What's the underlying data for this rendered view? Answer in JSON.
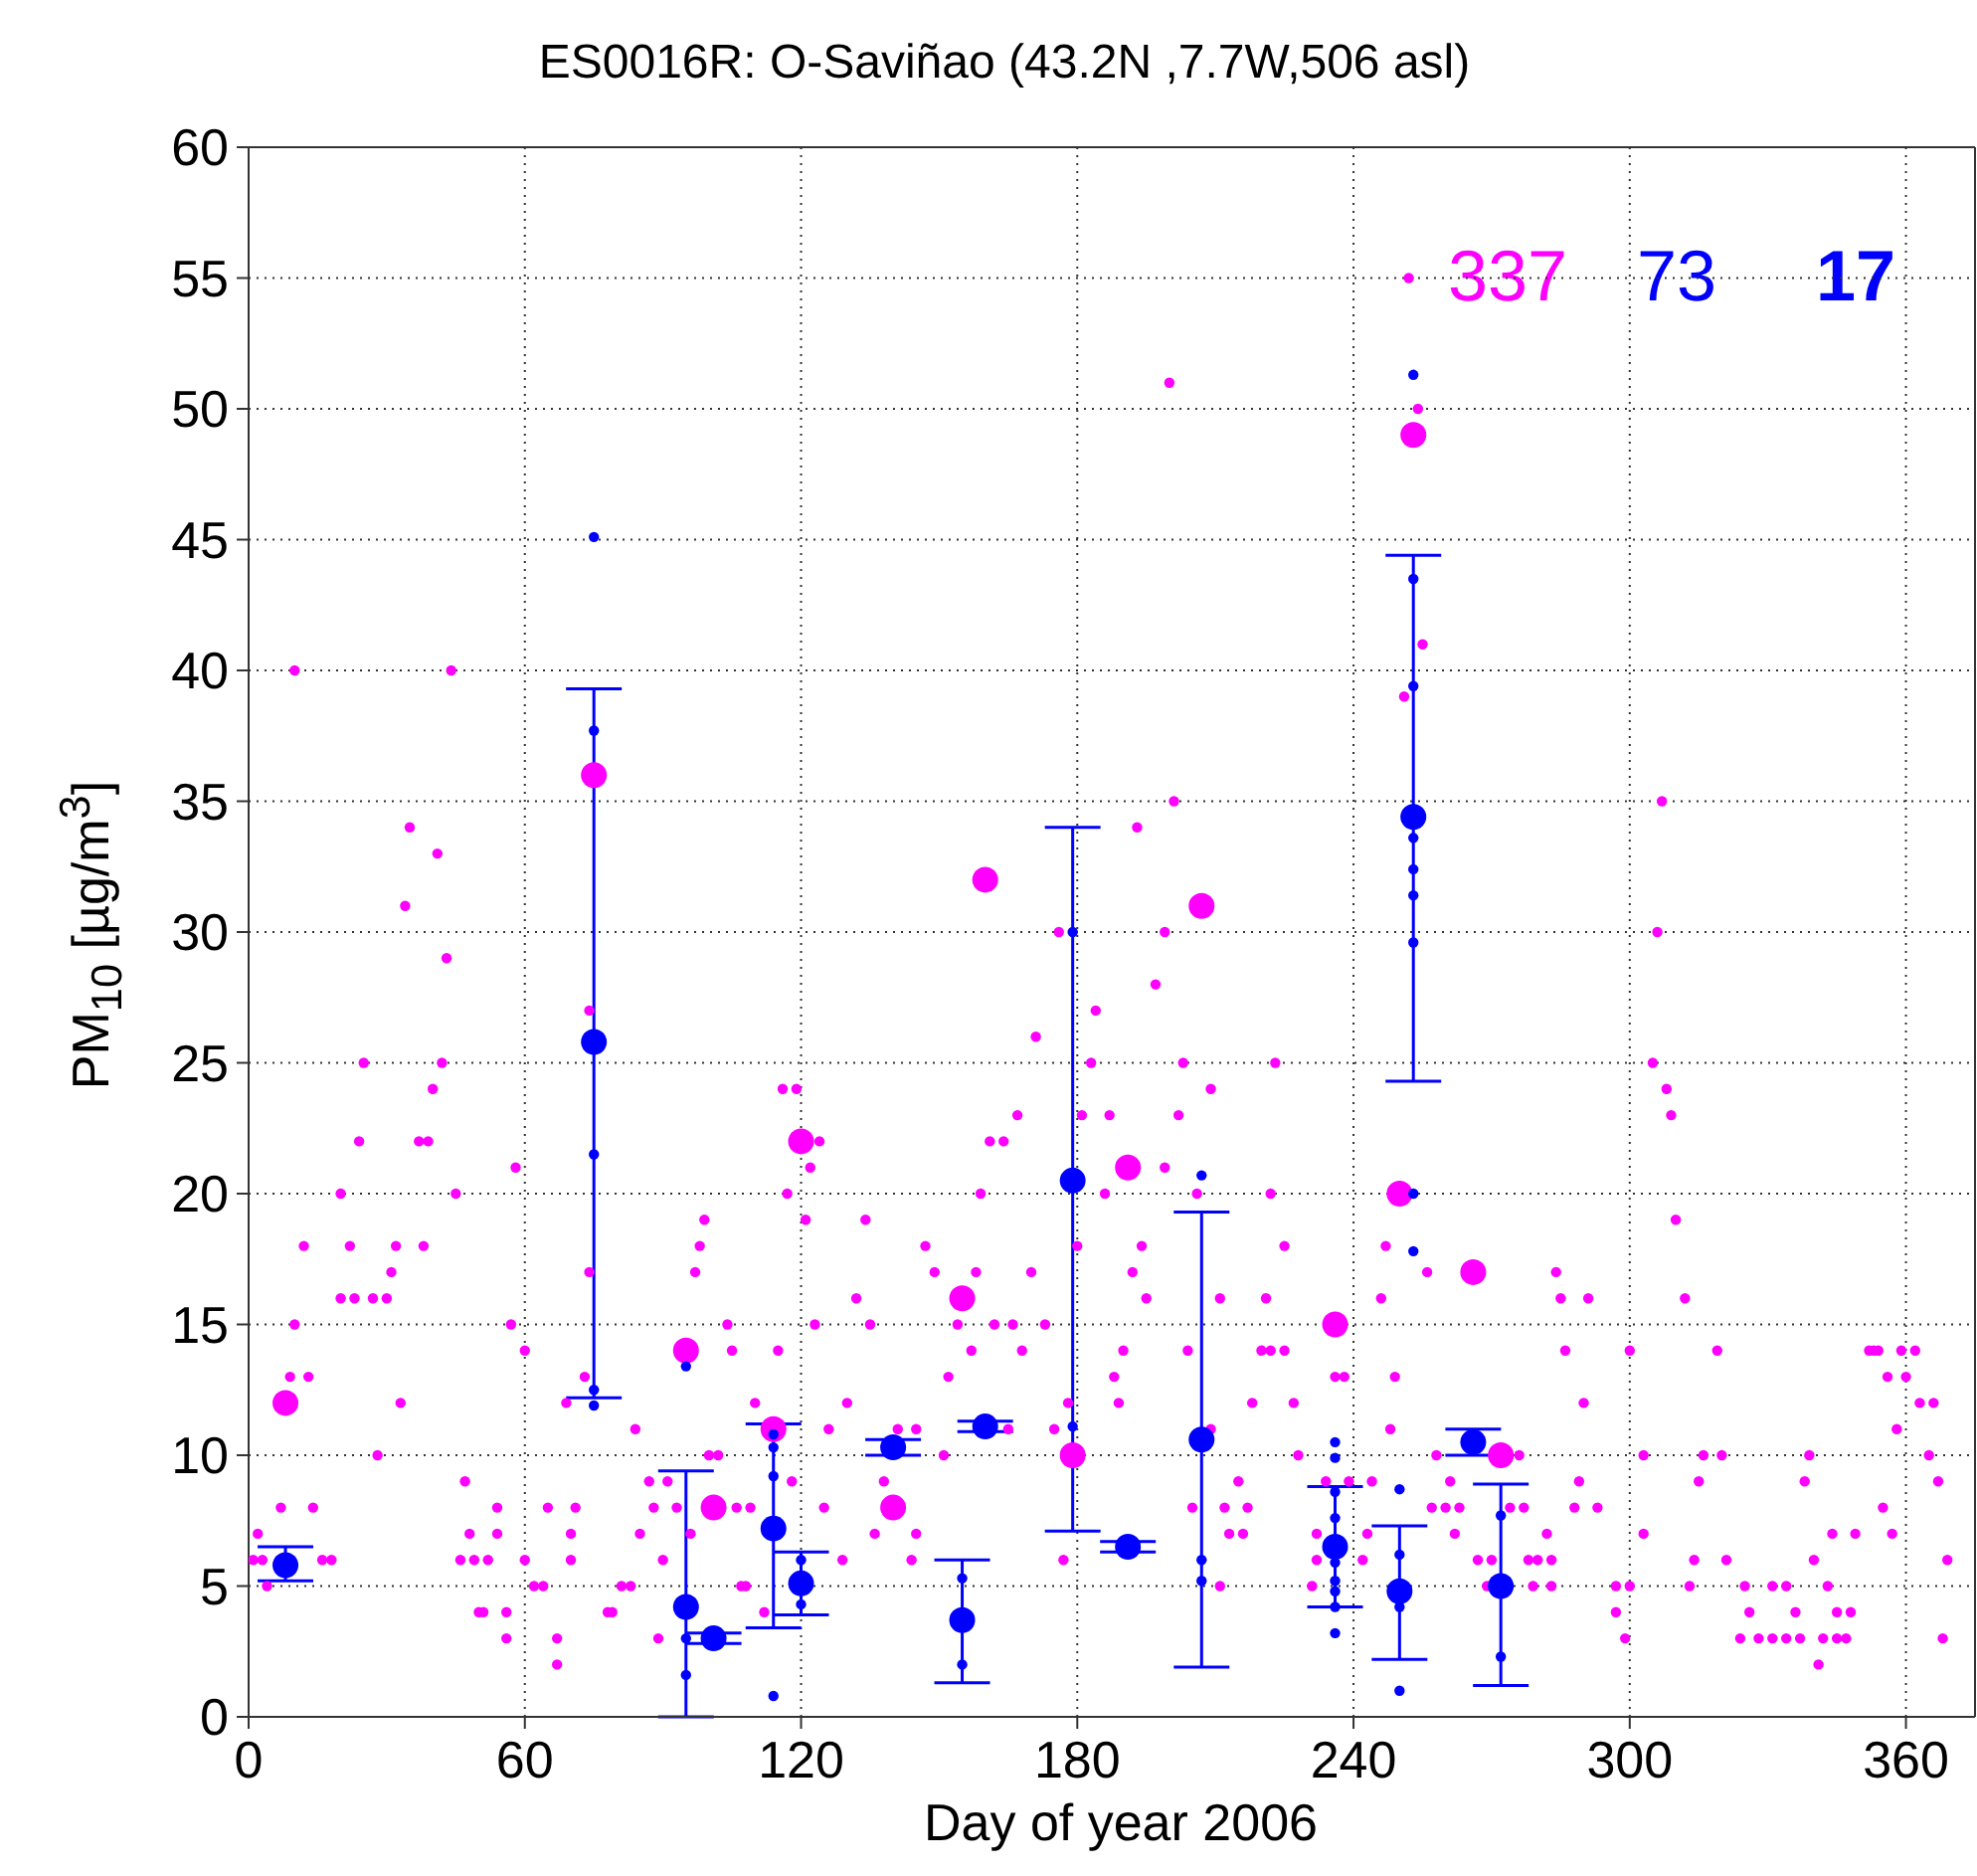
{
  "chart_data": {
    "type": "scatter",
    "title": "ES0016R: O-Saviñao (43.2N ,7.7W,506 asl)",
    "xlabel": "Day of year 2006",
    "ylabel": "PM$_{10}$ [µg/m$^{3}$]",
    "xlim": [
      0,
      375
    ],
    "xticks": [
      0,
      60,
      120,
      180,
      240,
      300,
      360
    ],
    "ylim": [
      0,
      60
    ],
    "yticks": [
      0,
      5,
      10,
      15,
      20,
      25,
      30,
      35,
      40,
      45,
      50,
      55,
      60
    ],
    "grid": true,
    "marker": "circle",
    "legend": false,
    "annotations": [
      "337",
      "73",
      "17"
    ],
    "series": [
      {
        "color": "#ff00ff",
        "x": [
          1,
          2,
          3,
          4,
          7,
          9,
          10,
          10,
          12,
          13,
          14,
          16,
          18,
          20,
          20,
          22,
          23,
          24,
          25,
          27,
          28,
          30,
          31,
          32,
          33,
          34,
          35,
          37,
          38,
          39,
          40,
          41,
          42,
          43,
          44,
          45,
          46,
          47,
          48,
          49,
          50,
          51,
          52,
          54,
          54,
          56,
          56,
          57,
          58,
          60,
          60,
          62,
          64,
          65,
          67,
          67,
          69,
          70,
          70,
          71,
          73,
          74,
          74,
          78,
          79,
          81,
          83,
          84,
          85,
          87,
          88,
          89,
          90,
          91,
          93,
          96,
          97,
          98,
          99,
          100,
          102,
          104,
          105,
          106,
          107,
          108,
          109,
          110,
          112,
          115,
          116,
          117,
          118,
          119,
          121,
          122,
          123,
          124,
          125,
          126,
          129,
          130,
          132,
          134,
          135,
          136,
          138,
          141,
          144,
          145,
          145,
          147,
          149,
          151,
          152,
          154,
          157,
          158,
          159,
          161,
          162,
          164,
          165,
          166,
          167,
          168,
          170,
          171,
          173,
          175,
          176,
          177,
          178,
          180,
          181,
          183,
          184,
          186,
          187,
          188,
          189,
          190,
          192,
          193,
          194,
          195,
          197,
          199,
          199,
          200,
          201,
          202,
          203,
          204,
          205,
          206,
          209,
          209,
          211,
          211,
          212,
          213,
          215,
          216,
          217,
          218,
          220,
          221,
          222,
          222,
          223,
          225,
          225,
          227,
          228,
          231,
          232,
          232,
          234,
          236,
          238,
          239,
          242,
          243,
          244,
          246,
          247,
          248,
          249,
          251,
          252,
          254,
          255,
          256,
          257,
          258,
          260,
          261,
          262,
          263,
          267,
          269,
          270,
          274,
          276,
          277,
          278,
          279,
          280,
          282,
          283,
          283,
          284,
          285,
          286,
          288,
          289,
          290,
          291,
          293,
          297,
          297,
          299,
          300,
          300,
          303,
          303,
          305,
          306,
          307,
          308,
          309,
          310,
          312,
          313,
          314,
          315,
          316,
          319,
          320,
          321,
          324,
          325,
          326,
          328,
          331,
          331,
          334,
          334,
          336,
          337,
          338,
          339,
          340,
          341,
          342,
          343,
          344,
          345,
          345,
          347,
          348,
          349,
          352,
          353,
          354,
          355,
          356,
          357,
          358,
          359,
          360,
          362,
          363,
          365,
          366,
          367,
          368,
          369
        ],
        "values": [
          6,
          7,
          6,
          5,
          8,
          13,
          15,
          40,
          18,
          13,
          8,
          6,
          6,
          20,
          16,
          18,
          16,
          22,
          25,
          16,
          10,
          16,
          17,
          18,
          12,
          31,
          34,
          22,
          18,
          22,
          24,
          33,
          25,
          29,
          40,
          20,
          6,
          9,
          7,
          6,
          4,
          4,
          6,
          8,
          7,
          4,
          3,
          15,
          21,
          14,
          6,
          5,
          5,
          8,
          3,
          2,
          12,
          7,
          6,
          8,
          13,
          27,
          17,
          4,
          4,
          5,
          5,
          11,
          7,
          9,
          8,
          3,
          6,
          9,
          8,
          7,
          17,
          18,
          19,
          10,
          10,
          15,
          14,
          8,
          5,
          5,
          8,
          12,
          4,
          14,
          24,
          20,
          9,
          24,
          19,
          21,
          15,
          22,
          8,
          11,
          6,
          12,
          16,
          19,
          15,
          7,
          9,
          11,
          6,
          11,
          7,
          18,
          17,
          10,
          13,
          15,
          14,
          17,
          20,
          22,
          15,
          22,
          11,
          15,
          23,
          14,
          17,
          26,
          15,
          11,
          30,
          6,
          12,
          18,
          23,
          25,
          27,
          20,
          23,
          13,
          12,
          14,
          17,
          34,
          18,
          16,
          28,
          30,
          21,
          51,
          35,
          23,
          25,
          14,
          8,
          20,
          24,
          11,
          16,
          5,
          8,
          7,
          9,
          7,
          8,
          12,
          14,
          16,
          14,
          20,
          25,
          18,
          14,
          12,
          10,
          5,
          7,
          6,
          9,
          13,
          13,
          9,
          6,
          7,
          9,
          16,
          18,
          11,
          13,
          39,
          55,
          50,
          41,
          17,
          8,
          10,
          8,
          9,
          7,
          8,
          6,
          5,
          6,
          8,
          10,
          8,
          6,
          5,
          6,
          7,
          6,
          5,
          17,
          16,
          14,
          8,
          9,
          12,
          16,
          8,
          5,
          4,
          3,
          14,
          5,
          10,
          7,
          25,
          30,
          35,
          24,
          23,
          19,
          16,
          5,
          6,
          9,
          10,
          14,
          10,
          6,
          3,
          5,
          4,
          3,
          3,
          5,
          3,
          5,
          4,
          3,
          9,
          10,
          6,
          2,
          3,
          5,
          7,
          4,
          3,
          3,
          4,
          7,
          14,
          14,
          14,
          8,
          13,
          7,
          11,
          14,
          13,
          14,
          12,
          10,
          12,
          9,
          3,
          6
        ]
      },
      {
        "color": "#ff00ff",
        "x": [
          8,
          75,
          95,
          101,
          114,
          120,
          140,
          155,
          160,
          179,
          191,
          207,
          236,
          250,
          253,
          266,
          272
        ],
        "values": [
          12,
          36,
          14,
          8,
          11,
          22,
          8,
          16,
          32,
          10,
          21,
          31,
          15,
          20,
          49,
          17,
          10
        ]
      },
      {
        "color": "#0000ff",
        "x": [
          75,
          75,
          75,
          75,
          75,
          95,
          95,
          95,
          114,
          114,
          114,
          114,
          120,
          120,
          155,
          155,
          179,
          179,
          207,
          207,
          207,
          236,
          236,
          236,
          236,
          236,
          236,
          236,
          236,
          236,
          250,
          250,
          250,
          250,
          253,
          253,
          253,
          253,
          253,
          253,
          253,
          253,
          253,
          272,
          272
        ],
        "values": [
          45.1,
          37.7,
          21.5,
          12.5,
          11.9,
          13.4,
          3.0,
          1.6,
          10.8,
          10.3,
          9.2,
          0.8,
          6.0,
          4.3,
          5.3,
          2.0,
          30.0,
          11.1,
          20.7,
          6.0,
          5.2,
          10.5,
          9.9,
          8.6,
          7.6,
          5.9,
          5.2,
          4.8,
          4.2,
          3.2,
          8.7,
          6.2,
          4.2,
          1.0,
          51.3,
          43.5,
          39.4,
          33.6,
          32.4,
          31.4,
          29.6,
          20.0,
          17.8,
          7.7,
          2.3
        ]
      },
      {
        "color": "#0000ff",
        "x": [
          8,
          75,
          95,
          101,
          114,
          120,
          140,
          155,
          160,
          179,
          191,
          207,
          236,
          250,
          253,
          266,
          272
        ],
        "values": [
          5.8,
          25.8,
          4.2,
          3.0,
          7.2,
          5.1,
          10.3,
          3.7,
          11.1,
          20.5,
          6.5,
          10.6,
          6.5,
          4.8,
          34.4,
          10.5,
          5.0
        ],
        "errors": [
          [
            5.2,
            6.5
          ],
          [
            12.2,
            39.3
          ],
          [
            0,
            9.4
          ],
          [
            2.8,
            3.2
          ],
          [
            3.4,
            11.2
          ],
          [
            3.9,
            6.3
          ],
          [
            10.0,
            10.6
          ],
          [
            1.3,
            6.0
          ],
          [
            10.9,
            11.3
          ],
          [
            7.1,
            34.0
          ],
          [
            6.3,
            6.7
          ],
          [
            1.9,
            19.3
          ],
          [
            4.2,
            8.8
          ],
          [
            2.2,
            7.3
          ],
          [
            24.3,
            44.4
          ],
          [
            10.0,
            11.0
          ],
          [
            1.2,
            8.9
          ]
        ]
      }
    ]
  }
}
